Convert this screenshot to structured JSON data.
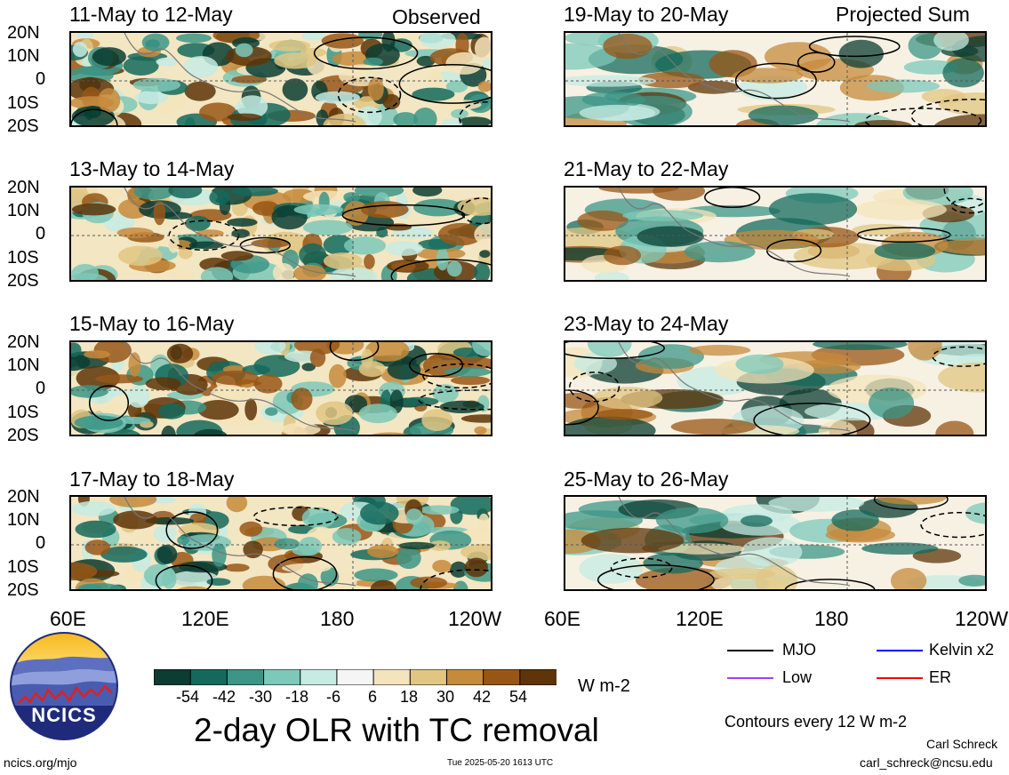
{
  "panels": {
    "left": [
      {
        "date": "11-May to 12-May",
        "label": "Observed"
      },
      {
        "date": "13-May to 14-May",
        "label": ""
      },
      {
        "date": "15-May to 16-May",
        "label": ""
      },
      {
        "date": "17-May to 18-May",
        "label": ""
      }
    ],
    "right": [
      {
        "date": "19-May to 20-May",
        "label": "Projected Sum"
      },
      {
        "date": "21-May to 22-May",
        "label": ""
      },
      {
        "date": "23-May to 24-May",
        "label": ""
      },
      {
        "date": "25-May to 26-May",
        "label": ""
      }
    ]
  },
  "lat_labels": [
    "20N",
    "10N",
    "0",
    "10S",
    "20S"
  ],
  "lon_labels": [
    "60E",
    "120E",
    "180",
    "120W"
  ],
  "colorbar": {
    "colors": [
      "#0b3d32",
      "#14695c",
      "#3c9587",
      "#7cc8b9",
      "#c6ebe3",
      "#f5f5f5",
      "#f4e4bb",
      "#e0c583",
      "#c58a3c",
      "#985616",
      "#5e3408"
    ],
    "ticks": [
      "-54",
      "-42",
      "-30",
      "-18",
      "-6",
      "6",
      "18",
      "30",
      "42",
      "54"
    ],
    "units": "W m-2"
  },
  "title": "2-day OLR with TC removal",
  "logo_text": "NCICS",
  "legend": {
    "items": [
      {
        "label": "MJO",
        "color": "#000000"
      },
      {
        "label": "Kelvin x2",
        "color": "#0000ff"
      },
      {
        "label": "Low",
        "color": "#a040ff"
      },
      {
        "label": "ER",
        "color": "#ff0000"
      }
    ],
    "contours_note": "Contours every 12 W m-2"
  },
  "footer": {
    "url": "ncics.org/mjo",
    "timestamp": "Tue 2025-05-20 1613 UTC",
    "author": "Carl Schreck",
    "email": "carl_schreck@ncsu.edu"
  }
}
